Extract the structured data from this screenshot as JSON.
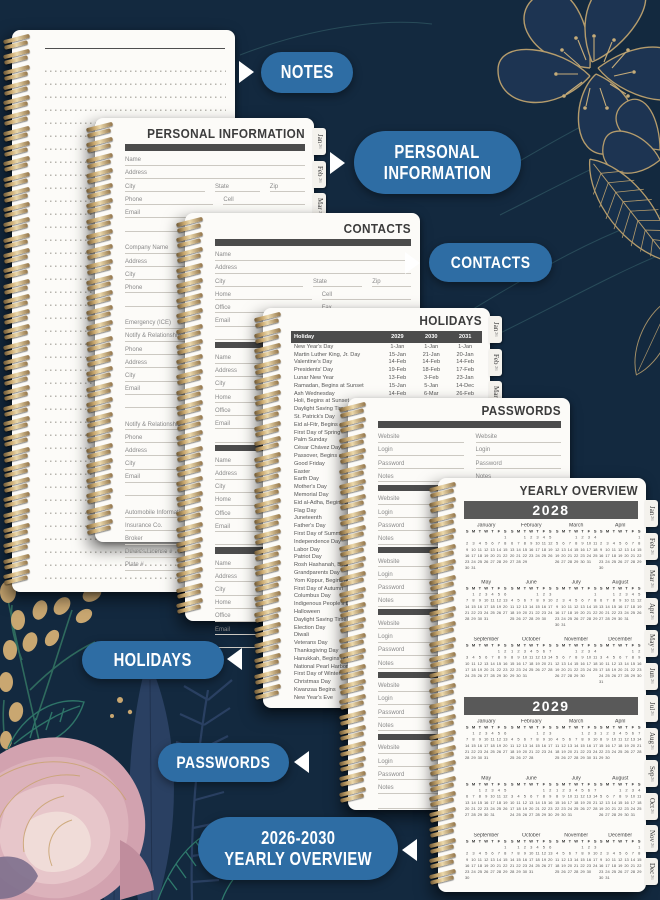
{
  "canvas": {
    "bg": "#13293F"
  },
  "colors": {
    "badge_blue": "#2E6DA4",
    "section_bar": "#4C4C4C",
    "year_bar": "#595959",
    "coil_gold": "#CAA96F",
    "page": "#FCFBF8"
  },
  "badges": {
    "notes": {
      "lines": [
        "NOTES"
      ],
      "arrow": "right"
    },
    "personal": {
      "lines": [
        "PERSONAL",
        "INFORMATION"
      ],
      "arrow": "right"
    },
    "contacts": {
      "lines": [
        "CONTACTS"
      ],
      "arrow": "right"
    },
    "holidays": {
      "lines": [
        "HOLIDAYS"
      ],
      "arrow": "left"
    },
    "passwords": {
      "lines": [
        "PASSWORDS"
      ],
      "arrow": "left"
    },
    "yearly": {
      "lines": [
        "2026-2030",
        "YEARLY OVERVIEW"
      ],
      "arrow": "left"
    }
  },
  "personal_page": {
    "title": "PERSONAL INFORMATION",
    "sections": [
      [
        [
          "Name"
        ],
        [
          "Address"
        ],
        [
          "City",
          "State",
          "Zip"
        ],
        [
          "Phone",
          "Cell"
        ],
        [
          "Email"
        ],
        [
          ""
        ]
      ],
      [
        [
          "Company Name"
        ],
        [
          "Address"
        ],
        [
          "City"
        ],
        [
          "Phone"
        ],
        [
          ""
        ]
      ],
      [
        [
          "Emergency (ICE)"
        ],
        [
          "Notify & Relationship"
        ],
        [
          "Phone"
        ],
        [
          "Address"
        ],
        [
          "City"
        ],
        [
          "Email"
        ],
        [
          ""
        ]
      ],
      [
        [
          "Notify & Relationship"
        ],
        [
          "Phone"
        ],
        [
          "Address"
        ],
        [
          "City"
        ],
        [
          "Email"
        ],
        [
          ""
        ]
      ],
      [
        [
          "Automobile Information"
        ],
        [
          "Insurance Co."
        ],
        [
          "Broker"
        ],
        [
          "Driver's License #"
        ],
        [
          "Plate #"
        ]
      ]
    ]
  },
  "contacts_page": {
    "title": "CONTACTS",
    "first_block": [
      [
        "Name"
      ],
      [
        "Address"
      ],
      [
        "City",
        "State",
        "Zip"
      ],
      [
        "Home",
        "Cell"
      ],
      [
        "Office",
        "Fax"
      ],
      [
        "Email"
      ],
      [
        ""
      ]
    ],
    "repeat_block": [
      [
        "Name"
      ],
      [
        "Address"
      ],
      [
        "City",
        "State",
        "Zip"
      ],
      [
        "Home",
        "Cell"
      ],
      [
        "Office",
        "Fax"
      ],
      [
        "Email"
      ],
      [
        ""
      ]
    ],
    "repeat_count": 3
  },
  "holidays_page": {
    "title": "HOLIDAYS",
    "header": [
      "Holiday",
      "2029",
      "2030",
      "2031"
    ],
    "rows": [
      [
        "New Year's Day",
        "1-Jan",
        "1-Jan",
        "1-Jan"
      ],
      [
        "Martin Luther King, Jr. Day",
        "15-Jan",
        "21-Jan",
        "20-Jan"
      ],
      [
        "Valentine's Day",
        "14-Feb",
        "14-Feb",
        "14-Feb"
      ],
      [
        "Presidents' Day",
        "19-Feb",
        "18-Feb",
        "17-Feb"
      ],
      [
        "Lunar New Year",
        "13-Feb",
        "3-Feb",
        "23-Jan"
      ],
      [
        "Ramadan, Begins at Sunset",
        "15-Jan",
        "5-Jan",
        "14-Dec"
      ],
      [
        "Ash Wednesday",
        "14-Feb",
        "6-Mar",
        "26-Feb"
      ],
      [
        "Holi, Begins at Sunset",
        "",
        "",
        ""
      ],
      [
        "Daylight Saving Time Begins",
        "",
        "",
        ""
      ],
      [
        "St. Patrick's Day",
        "",
        "",
        ""
      ],
      [
        "Eid al-Fitr, Begins at Sunset",
        "",
        "",
        ""
      ],
      [
        "First Day of Spring",
        "",
        "",
        ""
      ],
      [
        "Palm Sunday",
        "",
        "",
        ""
      ],
      [
        "César Chávez Day",
        "",
        "",
        ""
      ],
      [
        "Passover, Begins at Sunset",
        "",
        "",
        ""
      ],
      [
        "Good Friday",
        "",
        "",
        ""
      ],
      [
        "Easter",
        "",
        "",
        ""
      ],
      [
        "Earth Day",
        "",
        "",
        ""
      ],
      [
        "Mother's Day",
        "",
        "",
        ""
      ],
      [
        "Memorial Day",
        "",
        "",
        ""
      ],
      [
        "Eid al-Adha, Begins at Sunset",
        "",
        "",
        ""
      ],
      [
        "Flag Day",
        "",
        "",
        ""
      ],
      [
        "Juneteenth",
        "",
        "",
        ""
      ],
      [
        "Father's Day",
        "",
        "",
        ""
      ],
      [
        "First Day of Summer",
        "",
        "",
        ""
      ],
      [
        "Independence Day",
        "",
        "",
        ""
      ],
      [
        "Labor Day",
        "",
        "",
        ""
      ],
      [
        "Patriot Day",
        "",
        "",
        ""
      ],
      [
        "Rosh Hashanah, Begins at Sunset",
        "",
        "",
        ""
      ],
      [
        "Grandparents Day",
        "",
        "",
        ""
      ],
      [
        "Yom Kippur, Begins at Sunset",
        "",
        "",
        ""
      ],
      [
        "First Day of Autumn",
        "",
        "",
        ""
      ],
      [
        "Columbus Day",
        "",
        "",
        ""
      ],
      [
        "Indigenous People's Day",
        "",
        "",
        ""
      ],
      [
        "Halloween",
        "",
        "",
        ""
      ],
      [
        "Daylight Saving Time Ends",
        "",
        "",
        ""
      ],
      [
        "Election Day",
        "",
        "",
        ""
      ],
      [
        "Diwali",
        "",
        "",
        ""
      ],
      [
        "Veterans Day",
        "",
        "",
        ""
      ],
      [
        "Thanksgiving Day",
        "",
        "",
        ""
      ],
      [
        "Hanukkah, Begins at Sunset",
        "",
        "",
        ""
      ],
      [
        "National Pearl Harbor Remembrance Day",
        "",
        "",
        ""
      ],
      [
        "First Day of Winter",
        "",
        "",
        ""
      ],
      [
        "Christmas Day",
        "",
        "",
        ""
      ],
      [
        "Kwanzaa Begins",
        "",
        "",
        ""
      ],
      [
        "New Year's Eve",
        "",
        "",
        ""
      ]
    ]
  },
  "passwords_page": {
    "title": "PASSWORDS",
    "fields": [
      "Website",
      "Login",
      "Password",
      "Notes"
    ],
    "block_count": 6
  },
  "yearly_page": {
    "title": "YEARLY OVERVIEW",
    "week_header": [
      "S",
      "M",
      "T",
      "W",
      "T",
      "F",
      "S"
    ],
    "month_names": [
      "January",
      "February",
      "March",
      "April",
      "May",
      "June",
      "July",
      "August",
      "September",
      "October",
      "November",
      "December"
    ],
    "years": [
      {
        "label": "2028",
        "starts": [
          6,
          2,
          3,
          6,
          1,
          4,
          6,
          2,
          5,
          0,
          3,
          5
        ],
        "days": [
          31,
          29,
          31,
          30,
          31,
          30,
          31,
          31,
          30,
          31,
          30,
          31
        ]
      },
      {
        "label": "2029",
        "starts": [
          1,
          4,
          4,
          0,
          2,
          5,
          0,
          3,
          6,
          1,
          4,
          6
        ],
        "days": [
          31,
          28,
          31,
          30,
          31,
          30,
          31,
          31,
          30,
          31,
          30,
          31
        ]
      }
    ]
  },
  "side_tabs": {
    "months": [
      "Jan",
      "Feb",
      "Mar",
      "Apr",
      "May",
      "Jun",
      "Jul",
      "Aug",
      "Sep",
      "Oct",
      "Nov",
      "Dec"
    ],
    "suffix": "26"
  }
}
